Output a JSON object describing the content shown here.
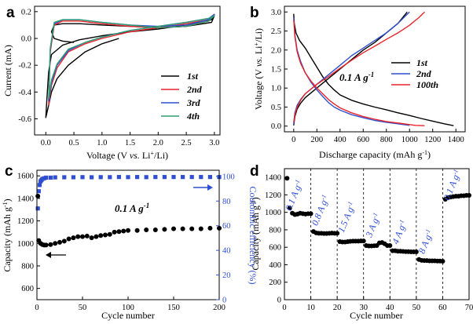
{
  "chart_data": [
    {
      "id": "a",
      "panel_label": "a",
      "type": "line",
      "title": "",
      "xlabel": "Voltage (V vs. Li⁺/Li)",
      "xlabel_parts": [
        "Voltage (V ",
        "vs.",
        " Li",
        "+",
        "/Li)"
      ],
      "ylabel": "Current (mA)",
      "xlim": [
        -0.2,
        3.1
      ],
      "ylim": [
        -0.72,
        0.24
      ],
      "xticks": [
        0.0,
        0.5,
        1.0,
        1.5,
        2.0,
        2.5,
        3.0
      ],
      "xtick_labels": [
        "0.0",
        "0.5",
        "1.0",
        "1.5",
        "2.0",
        "2.5",
        "3.0"
      ],
      "yticks": [
        -0.6,
        -0.4,
        -0.2,
        0.0,
        0.2
      ],
      "ytick_labels": [
        "-0.6",
        "-0.4",
        "-0.2",
        "0.0",
        "0.2"
      ],
      "legend_position": "bottom-right",
      "series": [
        {
          "name": "1st",
          "color": "#000000",
          "x": [
            1.3,
            1.0,
            0.7,
            0.4,
            0.2,
            0.1,
            0.05,
            0.0,
            0.02,
            0.05,
            0.1,
            0.3,
            0.6,
            1.0,
            1.5,
            2.0,
            2.5,
            2.8,
            2.95,
            3.0,
            2.95,
            2.5,
            2.0,
            1.5,
            1.0,
            0.6,
            0.3,
            0.15,
            0.1,
            0.15,
            0.3,
            0.5
          ],
          "y": [
            0.0,
            -0.04,
            -0.1,
            -0.2,
            -0.3,
            -0.4,
            -0.5,
            -0.59,
            -0.45,
            -0.25,
            -0.12,
            -0.05,
            -0.01,
            0.02,
            0.05,
            0.07,
            0.1,
            0.12,
            0.14,
            0.17,
            0.12,
            0.09,
            0.08,
            0.09,
            0.1,
            0.11,
            0.11,
            0.1,
            0.05,
            0.0,
            -0.02,
            -0.03
          ]
        },
        {
          "name": "2nd",
          "color": "#e8242a",
          "x": [
            0.05,
            0.1,
            0.2,
            0.4,
            0.7,
            1.0,
            1.5,
            2.0,
            2.5,
            2.9,
            3.0,
            2.9,
            2.5,
            2.0,
            1.5,
            1.0,
            0.6,
            0.3,
            0.15,
            0.08,
            0.05
          ],
          "y": [
            -0.5,
            -0.35,
            -0.22,
            -0.1,
            -0.04,
            0.0,
            0.05,
            0.08,
            0.11,
            0.14,
            0.18,
            0.13,
            0.09,
            0.08,
            0.09,
            0.11,
            0.13,
            0.13,
            0.1,
            -0.1,
            -0.5
          ]
        },
        {
          "name": "3rd",
          "color": "#2f4fd0",
          "x": [
            0.05,
            0.1,
            0.2,
            0.4,
            0.7,
            1.0,
            1.5,
            2.0,
            2.5,
            2.9,
            3.0,
            2.9,
            2.5,
            2.0,
            1.5,
            1.0,
            0.6,
            0.3,
            0.15,
            0.08,
            0.05
          ],
          "y": [
            -0.47,
            -0.33,
            -0.2,
            -0.09,
            -0.03,
            0.01,
            0.06,
            0.09,
            0.12,
            0.15,
            0.18,
            0.14,
            0.1,
            0.09,
            0.1,
            0.12,
            0.14,
            0.14,
            0.11,
            -0.08,
            -0.47
          ]
        },
        {
          "name": "4th",
          "color": "#2f9d72",
          "x": [
            0.05,
            0.1,
            0.2,
            0.4,
            0.7,
            1.0,
            1.5,
            2.0,
            2.5,
            2.9,
            3.0,
            2.9,
            2.5,
            2.0,
            1.5,
            1.0,
            0.6,
            0.3,
            0.15,
            0.08,
            0.05
          ],
          "y": [
            -0.45,
            -0.31,
            -0.19,
            -0.08,
            -0.03,
            0.01,
            0.06,
            0.09,
            0.12,
            0.15,
            0.17,
            0.13,
            0.09,
            0.08,
            0.1,
            0.12,
            0.14,
            0.14,
            0.12,
            -0.07,
            -0.45
          ]
        }
      ]
    },
    {
      "id": "b",
      "panel_label": "b",
      "type": "line",
      "title": "",
      "xlabel": "Discharge capacity (mAh g⁻¹)",
      "xlabel_parts": [
        "Discharge capacity (mAh g",
        "-1",
        ")"
      ],
      "ylabel": "Voltage (V vs. Li⁺/Li)",
      "ylabel_parts": [
        "Voltage (V ",
        "vs.",
        " Li",
        "+",
        "/Li)"
      ],
      "xlim": [
        -80,
        1480
      ],
      "ylim": [
        -0.15,
        3.15
      ],
      "xticks": [
        0,
        200,
        400,
        600,
        800,
        1000,
        1200,
        1400
      ],
      "xtick_labels": [
        "0",
        "200",
        "400",
        "600",
        "800",
        "1000",
        "1200",
        "1400"
      ],
      "yticks": [
        0.0,
        0.5,
        1.0,
        1.5,
        2.0,
        2.5,
        3.0
      ],
      "ytick_labels": [
        "0.0",
        "0.5",
        "1.0",
        "1.5",
        "2.0",
        "2.5",
        "3.0"
      ],
      "annotation": {
        "text": "0.1 A g",
        "sup": "-1"
      },
      "legend_position": "right",
      "series": [
        {
          "name": "1st",
          "color": "#000000",
          "x": [
            0,
            5,
            20,
            50,
            100,
            150,
            200,
            250,
            300,
            350,
            400,
            500,
            600,
            700,
            800,
            900,
            1000,
            1100,
            1200,
            1300,
            1380,
            null,
            0,
            10,
            30,
            60,
            100,
            200,
            300,
            400,
            500,
            600,
            700,
            800,
            900,
            980
          ],
          "y": [
            2.95,
            2.7,
            2.45,
            2.25,
            2.05,
            1.8,
            1.55,
            1.3,
            1.1,
            0.95,
            0.82,
            0.68,
            0.58,
            0.5,
            0.43,
            0.35,
            0.28,
            0.2,
            0.13,
            0.06,
            0.01,
            null,
            0.02,
            0.25,
            0.45,
            0.6,
            0.75,
            1.0,
            1.25,
            1.5,
            1.75,
            2.0,
            2.2,
            2.45,
            2.7,
            3.0
          ]
        },
        {
          "name": "2nd",
          "color": "#2f4fd0",
          "x": [
            0,
            10,
            30,
            60,
            100,
            150,
            200,
            250,
            300,
            350,
            400,
            500,
            600,
            700,
            800,
            900,
            1000,
            null,
            0,
            10,
            30,
            60,
            100,
            200,
            300,
            400,
            500,
            600,
            700,
            800,
            900,
            1000
          ],
          "y": [
            2.85,
            2.4,
            2.0,
            1.7,
            1.4,
            1.15,
            0.95,
            0.78,
            0.62,
            0.5,
            0.42,
            0.3,
            0.22,
            0.15,
            0.1,
            0.06,
            0.02,
            null,
            0.05,
            0.35,
            0.55,
            0.7,
            0.85,
            1.1,
            1.35,
            1.6,
            1.85,
            2.05,
            2.25,
            2.45,
            2.7,
            3.0
          ]
        },
        {
          "name": "100th",
          "color": "#e8242a",
          "x": [
            0,
            10,
            30,
            60,
            100,
            150,
            200,
            250,
            300,
            350,
            400,
            500,
            600,
            700,
            800,
            900,
            1000,
            1050,
            1130,
            null,
            0,
            10,
            30,
            60,
            100,
            200,
            300,
            400,
            500,
            600,
            700,
            800,
            900,
            1000,
            1080,
            1130
          ],
          "y": [
            2.8,
            2.35,
            1.95,
            1.65,
            1.4,
            1.18,
            1.0,
            0.85,
            0.7,
            0.58,
            0.48,
            0.35,
            0.25,
            0.18,
            0.12,
            0.08,
            0.04,
            0.02,
            0.01,
            null,
            0.1,
            0.3,
            0.5,
            0.68,
            0.85,
            1.1,
            1.3,
            1.52,
            1.73,
            1.93,
            2.1,
            2.28,
            2.45,
            2.65,
            2.85,
            3.0
          ]
        }
      ]
    },
    {
      "id": "c",
      "panel_label": "c",
      "type": "scatter",
      "title": "",
      "xlabel": "Cycle number",
      "ylabel": "Capacity (mAh g⁻¹)",
      "ylabel_parts": [
        "Capacity (mAh g",
        "-1",
        ")"
      ],
      "y2label": "Coulombic efficiency (%)",
      "xlim": [
        0,
        200
      ],
      "ylim": [
        500,
        1650
      ],
      "y2lim": [
        0,
        105
      ],
      "xticks": [
        0,
        50,
        100,
        150,
        200
      ],
      "xtick_labels": [
        "0",
        "50",
        "100",
        "150",
        "200"
      ],
      "yticks": [
        600,
        800,
        1000,
        1200,
        1400,
        1600
      ],
      "ytick_labels": [
        "600",
        "800",
        "1000",
        "1200",
        "1400",
        "1600"
      ],
      "y2ticks": [
        0,
        20,
        40,
        60,
        80,
        100
      ],
      "y2tick_labels": [
        "0",
        "20",
        "40",
        "60",
        "80",
        "100"
      ],
      "annotation": {
        "text": "0.1 A g",
        "sup": "-1"
      },
      "series": [
        {
          "name": "Capacity",
          "color": "#000000",
          "axis": "left",
          "x": [
            1,
            2,
            4,
            6,
            8,
            10,
            15,
            20,
            25,
            30,
            35,
            40,
            45,
            50,
            55,
            60,
            65,
            70,
            75,
            80,
            85,
            90,
            95,
            100,
            110,
            120,
            130,
            140,
            150,
            160,
            170,
            180,
            190,
            200
          ],
          "y": [
            1420,
            1025,
            1000,
            990,
            985,
            985,
            990,
            1000,
            1010,
            1020,
            1040,
            1050,
            1060,
            1060,
            1065,
            1050,
            1060,
            1070,
            1075,
            1080,
            1100,
            1105,
            1110,
            1115,
            1115,
            1120,
            1120,
            1125,
            1130,
            1130,
            1130,
            1130,
            1135,
            1135
          ]
        },
        {
          "name": "Coulombic efficiency",
          "color": "#2f4fd0",
          "axis": "right",
          "x": [
            1,
            2,
            3,
            4,
            5,
            6,
            8,
            10,
            15,
            20,
            30,
            40,
            50,
            60,
            70,
            80,
            90,
            100,
            110,
            120,
            130,
            140,
            150,
            160,
            170,
            180,
            190,
            200
          ],
          "y": [
            74,
            88,
            93,
            96,
            97,
            98,
            98.5,
            99,
            99,
            99.2,
            99.3,
            99.3,
            99.4,
            99.3,
            99.4,
            99.4,
            99.5,
            99.4,
            99.5,
            99.4,
            99.5,
            99.5,
            99.5,
            99.5,
            99.5,
            99.5,
            99.5,
            99.5
          ]
        }
      ],
      "arrows": [
        {
          "points_to": "left axis",
          "at_x": 10,
          "at_y": 960
        },
        {
          "points_to": "right axis",
          "at_x": 190,
          "at_y": 91
        }
      ]
    },
    {
      "id": "d",
      "panel_label": "d",
      "type": "scatter",
      "title": "",
      "xlabel": "Cycle number",
      "ylabel": "Capacity (mAh g⁻¹)",
      "ylabel_parts": [
        "Capacity (mAh g",
        "-1",
        ")"
      ],
      "xlim": [
        0,
        70
      ],
      "ylim": [
        0,
        1500
      ],
      "xticks": [
        0,
        10,
        20,
        30,
        40,
        50,
        60,
        70
      ],
      "xtick_labels": [
        "0",
        "10",
        "20",
        "30",
        "40",
        "50",
        "60",
        "70"
      ],
      "yticks": [
        0,
        200,
        400,
        600,
        800,
        1000,
        1200,
        1400
      ],
      "ytick_labels": [
        "0",
        "200",
        "400",
        "600",
        "800",
        "1000",
        "1200",
        "1400"
      ],
      "dividers_x": [
        10,
        20,
        30,
        40,
        50,
        60
      ],
      "rate_labels": [
        {
          "text": "0.1 A g",
          "sup": "-1",
          "at_x": 5
        },
        {
          "text": "0.8 A g",
          "sup": "-1",
          "at_x": 15
        },
        {
          "text": "1.5 A g",
          "sup": "-1",
          "at_x": 25
        },
        {
          "text": "3 A g",
          "sup": "-1",
          "at_x": 35
        },
        {
          "text": "4 A g",
          "sup": "-1",
          "at_x": 45
        },
        {
          "text": "8 A g",
          "sup": "-1",
          "at_x": 55
        },
        {
          "text": "0.1 A g",
          "sup": "-1",
          "at_x": 65
        }
      ],
      "series": [
        {
          "name": "Capacity",
          "color": "#000000",
          "x": [
            1,
            2,
            3,
            4,
            5,
            6,
            7,
            8,
            9,
            10,
            11,
            12,
            13,
            14,
            15,
            16,
            17,
            18,
            19,
            20,
            21,
            22,
            23,
            24,
            25,
            26,
            27,
            28,
            29,
            30,
            31,
            32,
            33,
            34,
            35,
            36,
            37,
            38,
            39,
            40,
            41,
            42,
            43,
            44,
            45,
            46,
            47,
            48,
            49,
            50,
            51,
            52,
            53,
            54,
            55,
            56,
            57,
            58,
            59,
            60,
            61,
            62,
            63,
            64,
            65,
            66,
            67,
            68,
            69,
            70
          ],
          "y": [
            1390,
            1050,
            990,
            975,
            980,
            990,
            985,
            980,
            985,
            985,
            780,
            765,
            760,
            760,
            758,
            758,
            760,
            762,
            760,
            760,
            665,
            660,
            660,
            665,
            668,
            670,
            670,
            670,
            672,
            672,
            620,
            615,
            615,
            618,
            620,
            650,
            655,
            640,
            620,
            620,
            560,
            560,
            555,
            555,
            552,
            550,
            550,
            548,
            548,
            548,
            460,
            450,
            448,
            448,
            445,
            445,
            445,
            442,
            442,
            440,
            1150,
            1170,
            1175,
            1180,
            1185,
            1185,
            1190,
            1190,
            1195,
            1195
          ]
        }
      ]
    }
  ],
  "legend_labels": [
    "1st",
    "2nd",
    "3rd",
    "4th"
  ],
  "legend_b_labels": [
    "1st",
    "2nd",
    "100th"
  ],
  "panel_labels": [
    "a",
    "b",
    "c",
    "d"
  ]
}
